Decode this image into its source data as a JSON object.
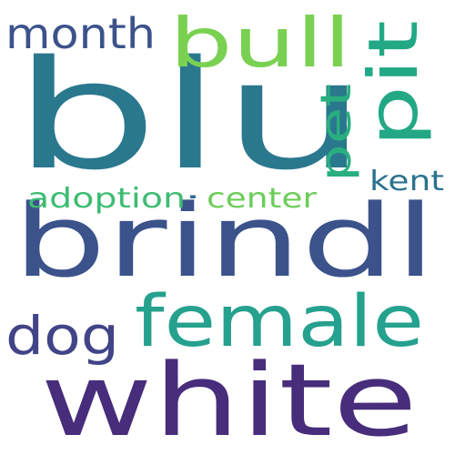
{
  "words": [
    {
      "id": "blu",
      "text": "blu",
      "color": "#2a788e"
    },
    {
      "id": "brindl",
      "text": "brindl",
      "color": "#3b528b"
    },
    {
      "id": "white",
      "text": "white",
      "color": "#472d7b"
    },
    {
      "id": "female",
      "text": "female",
      "color": "#25a18e"
    },
    {
      "id": "bull",
      "text": "bull",
      "color": "#7ad151"
    },
    {
      "id": "pit",
      "text": "pit",
      "color": "#22a884"
    },
    {
      "id": "month",
      "text": "month",
      "color": "#3b528b"
    },
    {
      "id": "dog",
      "text": "dog",
      "color": "#414487"
    },
    {
      "id": "pet",
      "text": "pet",
      "color": "#29af7f"
    },
    {
      "id": "adoption",
      "text": "adoption",
      "color": "#3fbc73"
    },
    {
      "id": "center",
      "text": "center",
      "color": "#6ccd5a"
    },
    {
      "id": "kent",
      "text": "kent",
      "color": "#2c728e"
    },
    {
      "id": "dot",
      "text": "·",
      "color": "#31688e"
    }
  ]
}
